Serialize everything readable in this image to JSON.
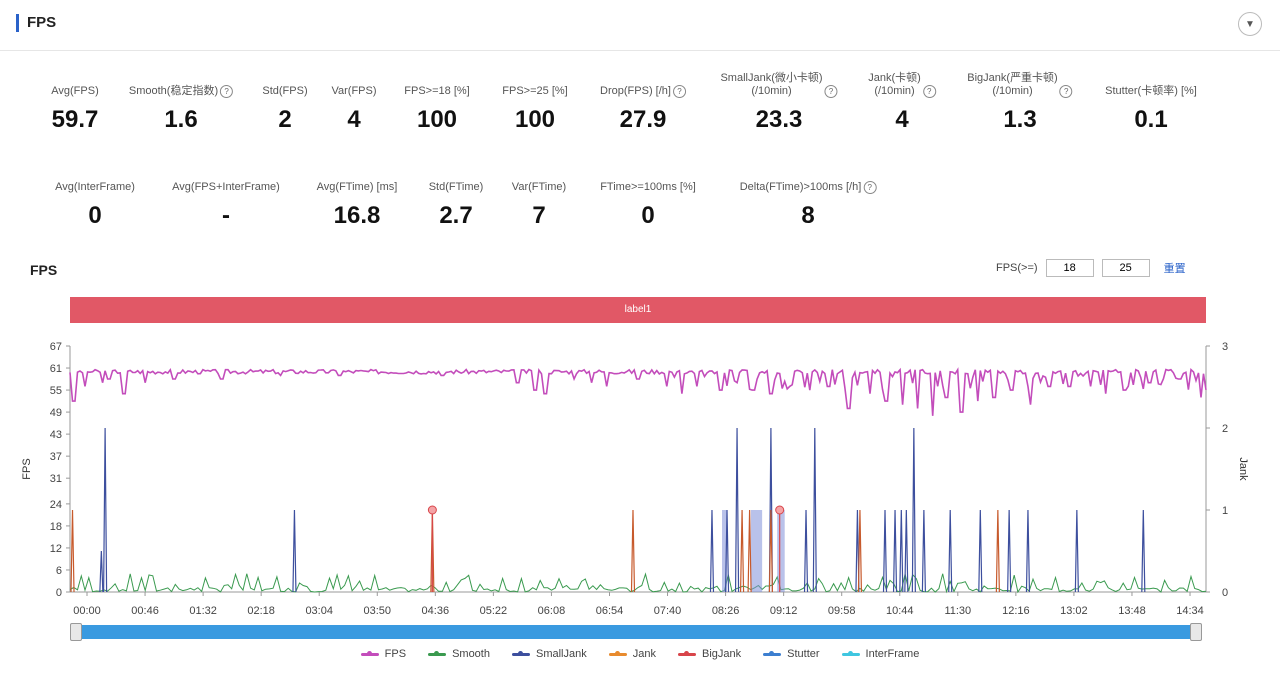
{
  "panel": {
    "title": "FPS",
    "collapse_icon": "chevron-down-icon"
  },
  "stats_row1": [
    {
      "label": "Avg(FPS)",
      "value": "59.7",
      "help": false
    },
    {
      "label": "Smooth(稳定指数)",
      "value": "1.6",
      "help": true
    },
    {
      "label": "Std(FPS)",
      "value": "2",
      "help": false
    },
    {
      "label": "Var(FPS)",
      "value": "4",
      "help": false
    },
    {
      "label": "FPS>=18 [%]",
      "value": "100",
      "help": false
    },
    {
      "label": "FPS>=25 [%]",
      "value": "100",
      "help": false
    },
    {
      "label": "Drop(FPS) [/h]",
      "value": "27.9",
      "help": true
    },
    {
      "label": "SmallJank(微小卡顿)\n(/10min)",
      "value": "23.3",
      "help": true
    },
    {
      "label": "Jank(卡顿)\n(/10min)",
      "value": "4",
      "help": true
    },
    {
      "label": "BigJank(严重卡顿)\n(/10min)",
      "value": "1.3",
      "help": true
    },
    {
      "label": "Stutter(卡顿率) [%]",
      "value": "0.1",
      "help": false
    }
  ],
  "stats_row2": [
    {
      "label": "Avg(InterFrame)",
      "value": "0",
      "help": false
    },
    {
      "label": "Avg(FPS+InterFrame)",
      "value": "-",
      "help": false
    },
    {
      "label": "Avg(FTime) [ms]",
      "value": "16.8",
      "help": false
    },
    {
      "label": "Std(FTime)",
      "value": "2.7",
      "help": false
    },
    {
      "label": "Var(FTime)",
      "value": "7",
      "help": false
    },
    {
      "label": "FTime>=100ms [%]",
      "value": "0",
      "help": false
    },
    {
      "label": "Delta(FTime)>100ms [/h]",
      "value": "8",
      "help": true
    }
  ],
  "chart_section": {
    "title": "FPS",
    "threshold_label": "FPS(>=)",
    "threshold_1": "18",
    "threshold_2": "25",
    "reset_label": "重置",
    "label_bar": "label1"
  },
  "chart_data": {
    "type": "line",
    "x_ticks": [
      "00:00",
      "00:46",
      "01:32",
      "02:18",
      "03:04",
      "03:50",
      "04:36",
      "05:22",
      "06:08",
      "06:54",
      "07:40",
      "08:26",
      "09:12",
      "09:58",
      "10:44",
      "11:30",
      "12:16",
      "13:02",
      "13:48",
      "14:34"
    ],
    "x_range_seconds": [
      0,
      906
    ],
    "y_left": {
      "label": "FPS",
      "ticks": [
        0,
        6,
        12,
        18,
        24,
        31,
        37,
        43,
        49,
        55,
        61,
        67
      ],
      "range": [
        0,
        67
      ]
    },
    "y_right": {
      "label": "Jank",
      "ticks": [
        0,
        1,
        2,
        3
      ],
      "range": [
        0,
        3
      ]
    },
    "legend": [
      {
        "name": "FPS",
        "color": "#c34dbb"
      },
      {
        "name": "Smooth",
        "color": "#3a9a4f"
      },
      {
        "name": "SmallJank",
        "color": "#3d4f9e"
      },
      {
        "name": "Jank",
        "color": "#e88b2e"
      },
      {
        "name": "BigJank",
        "color": "#d8454a"
      },
      {
        "name": "Stutter",
        "color": "#3d7fd0"
      },
      {
        "name": "InterFrame",
        "color": "#3fc6e0"
      }
    ],
    "legend_position": "bottom",
    "series": [
      {
        "name": "FPS",
        "axis": "left",
        "baseline": 60,
        "dips": [
          [
            3,
            52
          ],
          [
            12,
            56
          ],
          [
            26,
            57
          ],
          [
            31,
            58
          ],
          [
            43,
            54
          ],
          [
            60,
            57
          ],
          [
            83,
            58
          ],
          [
            121,
            58
          ],
          [
            168,
            59
          ],
          [
            215,
            59
          ],
          [
            297,
            59
          ],
          [
            357,
            57
          ],
          [
            371,
            55
          ],
          [
            379,
            54
          ],
          [
            402,
            58
          ],
          [
            416,
            57
          ],
          [
            428,
            56
          ],
          [
            453,
            58
          ],
          [
            476,
            56
          ],
          [
            488,
            54
          ],
          [
            500,
            56
          ],
          [
            519,
            55
          ],
          [
            532,
            57
          ],
          [
            545,
            55
          ],
          [
            559,
            54
          ],
          [
            574,
            56
          ],
          [
            590,
            55
          ],
          [
            605,
            56
          ],
          [
            621,
            50
          ],
          [
            638,
            54
          ],
          [
            651,
            52
          ],
          [
            664,
            51
          ],
          [
            676,
            50
          ],
          [
            688,
            48
          ],
          [
            699,
            53
          ],
          [
            711,
            49
          ],
          [
            724,
            52
          ],
          [
            737,
            53
          ],
          [
            751,
            55
          ],
          [
            766,
            51
          ],
          [
            781,
            56
          ],
          [
            797,
            56
          ],
          [
            814,
            56
          ],
          [
            826,
            54
          ],
          [
            841,
            55
          ],
          [
            861,
            57
          ],
          [
            885,
            58
          ],
          [
            902,
            53
          ]
        ]
      },
      {
        "name": "SmallJank",
        "axis": "right",
        "spikes": [
          [
            28,
            2
          ],
          [
            25,
            0.5
          ],
          [
            179,
            1
          ],
          [
            512,
            1
          ],
          [
            524,
            1
          ],
          [
            532,
            2
          ],
          [
            559,
            2
          ],
          [
            587,
            1
          ],
          [
            594,
            2
          ],
          [
            628,
            1
          ],
          [
            650,
            1
          ],
          [
            658,
            1
          ],
          [
            663,
            1
          ],
          [
            667,
            1
          ],
          [
            673,
            2
          ],
          [
            681,
            1
          ],
          [
            702,
            1
          ],
          [
            726,
            1
          ],
          [
            749,
            1
          ],
          [
            764,
            1
          ],
          [
            803,
            1
          ],
          [
            856,
            1
          ]
        ]
      },
      {
        "name": "Jank",
        "axis": "right",
        "spikes": [
          [
            2,
            1
          ],
          [
            289,
            1
          ],
          [
            449,
            1
          ],
          [
            536,
            1
          ],
          [
            542,
            1
          ],
          [
            559,
            1
          ],
          [
            630,
            1
          ],
          [
            740,
            1
          ]
        ]
      },
      {
        "name": "BigJank",
        "axis": "right",
        "points": [
          [
            289,
            1
          ],
          [
            566,
            1
          ]
        ]
      },
      {
        "name": "Stutter",
        "axis": "right",
        "bands": [
          [
            520,
            524
          ],
          [
            543,
            552
          ],
          [
            564,
            570
          ]
        ]
      },
      {
        "name": "Smooth",
        "axis": "left",
        "typical": [
          0,
          5
        ]
      },
      {
        "name": "InterFrame",
        "axis": "left",
        "typical": [
          0,
          0
        ]
      }
    ]
  }
}
